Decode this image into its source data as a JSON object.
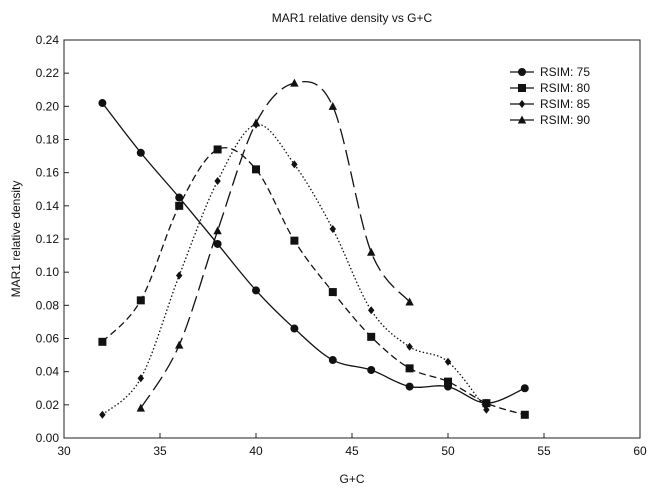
{
  "chart_data": {
    "type": "line",
    "title": "MAR1 relative density vs G+C",
    "xlabel": "G+C",
    "ylabel": "MAR1 relative density",
    "xlim": [
      30,
      60
    ],
    "ylim": [
      0,
      0.24
    ],
    "x_ticks": [
      "30",
      "35",
      "40",
      "45",
      "50",
      "55",
      "60"
    ],
    "y_ticks": [
      "0.00",
      "0.02",
      "0.04",
      "0.06",
      "0.08",
      "0.10",
      "0.12",
      "0.14",
      "0.16",
      "0.18",
      "0.20",
      "0.22",
      "0.24"
    ],
    "grid": false,
    "legend_position": "top-right",
    "series": [
      {
        "name": "RSIM: 75",
        "marker": "circle",
        "line_style": "solid",
        "color": "#111111",
        "x": [
          32,
          34,
          36,
          38,
          40,
          42,
          44,
          46,
          48,
          50,
          52,
          54
        ],
        "y": [
          0.202,
          0.172,
          0.145,
          0.117,
          0.089,
          0.066,
          0.047,
          0.041,
          0.031,
          0.031,
          0.021,
          0.03
        ]
      },
      {
        "name": "RSIM: 80",
        "marker": "square",
        "line_style": "dashed",
        "color": "#111111",
        "x": [
          32,
          34,
          36,
          38,
          40,
          42,
          44,
          46,
          48,
          50,
          52,
          54
        ],
        "y": [
          0.058,
          0.083,
          0.14,
          0.174,
          0.162,
          0.119,
          0.088,
          0.061,
          0.042,
          0.034,
          0.021,
          0.014
        ]
      },
      {
        "name": "RSIM: 85",
        "marker": "diamond",
        "line_style": "dotted",
        "color": "#111111",
        "x": [
          32,
          34,
          36,
          38,
          40,
          42,
          44,
          46,
          48,
          50,
          52
        ],
        "y": [
          0.014,
          0.036,
          0.098,
          0.155,
          0.189,
          0.165,
          0.126,
          0.077,
          0.055,
          0.046,
          0.017
        ]
      },
      {
        "name": "RSIM: 90",
        "marker": "triangle",
        "line_style": "long-dash",
        "color": "#111111",
        "x": [
          34,
          36,
          38,
          40,
          42,
          44,
          46,
          48
        ],
        "y": [
          0.018,
          0.056,
          0.125,
          0.19,
          0.214,
          0.2,
          0.112,
          0.082
        ]
      }
    ]
  }
}
